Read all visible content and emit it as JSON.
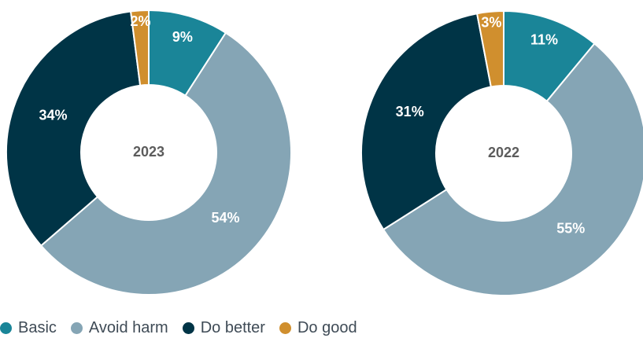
{
  "chart_data": [
    {
      "type": "pie",
      "title": "2023",
      "categories": [
        "Basic",
        "Avoid harm",
        "Do better",
        "Do good"
      ],
      "values": [
        9,
        54,
        34,
        2
      ],
      "labels": [
        "9%",
        "54%",
        "34%",
        "2%"
      ],
      "legend": "bottom-left",
      "grid": false,
      "colors": [
        "#1a8598",
        "#85a5b5",
        "#003446",
        "#d08f2e"
      ]
    },
    {
      "type": "pie",
      "title": "2022",
      "categories": [
        "Basic",
        "Avoid harm",
        "Do better",
        "Do good"
      ],
      "values": [
        11,
        55,
        31,
        3
      ],
      "labels": [
        "11%",
        "55%",
        "31%",
        "3%"
      ],
      "legend": "bottom-left",
      "grid": false,
      "colors": [
        "#1a8598",
        "#85a5b5",
        "#003446",
        "#d08f2e"
      ]
    }
  ],
  "legend": {
    "items": [
      {
        "label": "Basic",
        "color": "#1a8598"
      },
      {
        "label": "Avoid harm",
        "color": "#85a5b5"
      },
      {
        "label": "Do better",
        "color": "#003446"
      },
      {
        "label": "Do good",
        "color": "#d08f2e"
      }
    ]
  }
}
